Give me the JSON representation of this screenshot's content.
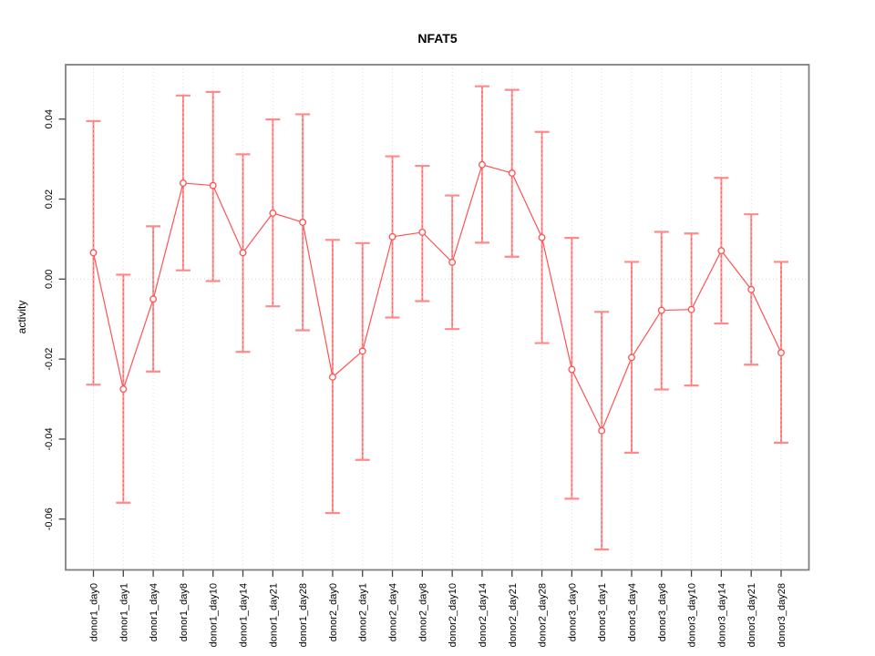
{
  "chart_data": {
    "type": "line",
    "title": "NFAT5",
    "xlabel": "",
    "ylabel": "activity",
    "legend": "none",
    "grid": "vertical dotted gridlines at each category; dotted horizontal reference line at y=0",
    "categories": [
      "donor1_day0",
      "donor1_day1",
      "donor1_day4",
      "donor1_day8",
      "donor1_day10",
      "donor1_day14",
      "donor1_day21",
      "donor1_day28",
      "donor2_day0",
      "donor2_day1",
      "donor2_day4",
      "donor2_day8",
      "donor2_day10",
      "donor2_day14",
      "donor2_day21",
      "donor2_day28",
      "donor3_day0",
      "donor3_day1",
      "donor3_day4",
      "donor3_day8",
      "donor3_day10",
      "donor3_day14",
      "donor3_day21",
      "donor3_day28"
    ],
    "series": [
      {
        "name": "activity",
        "values": [
          0.0066,
          -0.0275,
          -0.005,
          0.024,
          0.0234,
          0.0066,
          0.0165,
          0.0142,
          -0.0245,
          -0.018,
          0.0106,
          0.0117,
          0.0042,
          0.0286,
          0.0265,
          0.0104,
          -0.0226,
          -0.0379,
          -0.0196,
          -0.0078,
          -0.0076,
          0.0071,
          -0.0026,
          -0.0184
        ],
        "error_high": [
          0.0395,
          0.0011,
          0.0132,
          0.0459,
          0.0468,
          0.0312,
          0.0399,
          0.0412,
          0.0098,
          0.009,
          0.0307,
          0.0283,
          0.0209,
          0.0482,
          0.0473,
          0.0368,
          0.0103,
          -0.0082,
          0.0043,
          0.0118,
          0.0114,
          0.0253,
          0.0162,
          0.0043
        ],
        "error_low": [
          -0.0264,
          -0.0559,
          -0.0231,
          0.0022,
          -0.0005,
          -0.0182,
          -0.0068,
          -0.0128,
          -0.0585,
          -0.0452,
          -0.0096,
          -0.0055,
          -0.0125,
          0.0091,
          0.0056,
          -0.016,
          -0.0549,
          -0.0676,
          -0.0434,
          -0.0276,
          -0.0266,
          -0.0111,
          -0.0214,
          -0.0409
        ]
      }
    ],
    "yticks": [
      {
        "label": "0.04",
        "value": 0.04
      },
      {
        "label": "0.02",
        "value": 0.02
      },
      {
        "label": "0.00",
        "value": 0.0
      },
      {
        "label": "-0.02",
        "value": -0.02
      },
      {
        "label": "-0.04",
        "value": -0.04
      },
      {
        "label": "-0.06",
        "value": -0.06
      }
    ],
    "ylim": [
      -0.0727,
      0.0536
    ],
    "zero_reference_line": 0.0,
    "colors": {
      "series_line": "#ff5252",
      "point_stroke": "#ff5252",
      "error_bar": "#ff9494",
      "error_bar_cap": "#ff8a8a",
      "error_bar_core": "#ff5c5c",
      "gridline": "#dcdcdc",
      "zero_line": "#d4d4d4",
      "plot_border": "#808080",
      "tick": "#444444",
      "text": "#000000"
    }
  }
}
